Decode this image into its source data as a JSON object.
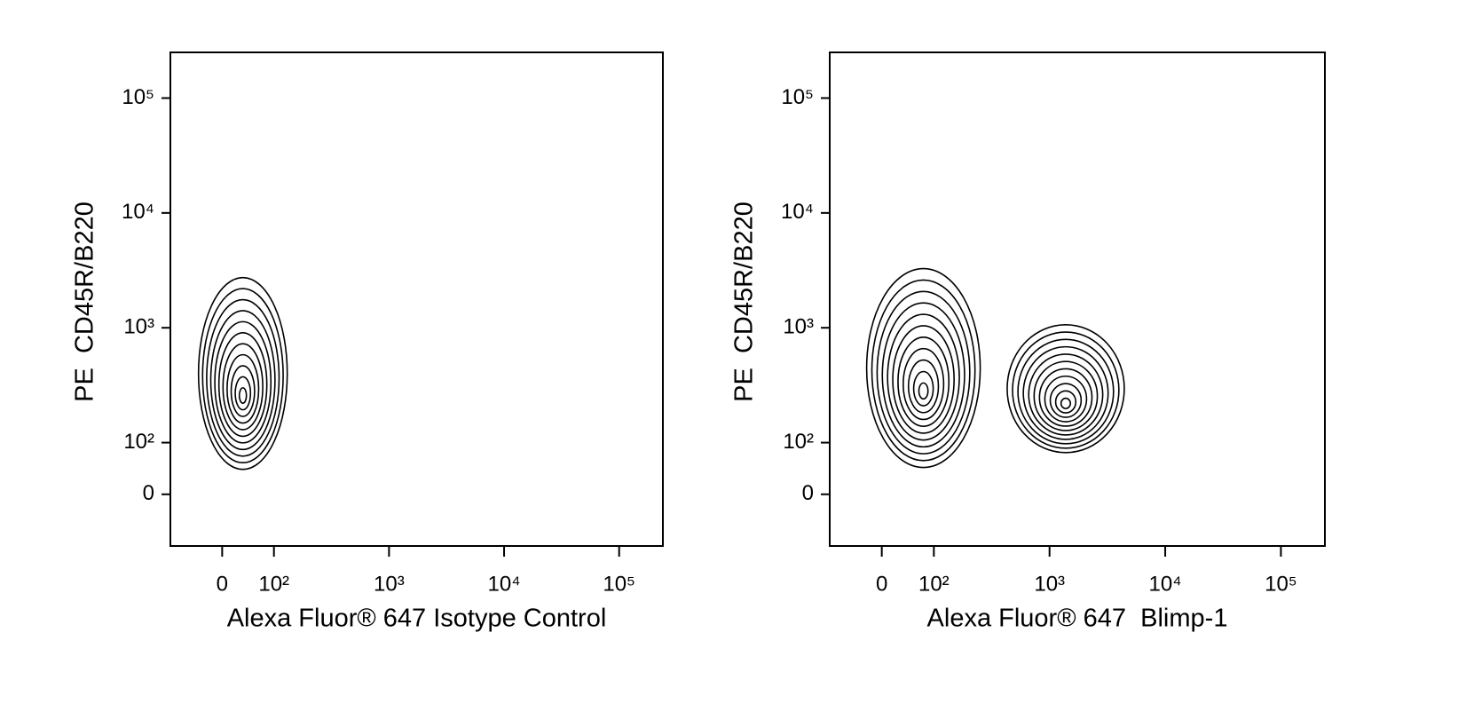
{
  "chart_data": [
    {
      "type": "contour",
      "scale": "biexponential",
      "x_label": "Alexa Fluor® 647 Isotype Control",
      "y_label": "PE  CD45R/B220",
      "x": [
        40
      ],
      "y": [
        400
      ],
      "xlim": [
        -100,
        240000
      ],
      "ylim": [
        -100,
        250000
      ],
      "xticks": [
        0,
        {
          "value": 100,
          "label": "10²"
        },
        {
          "value": 1000,
          "label": "10³"
        },
        {
          "value": 10000,
          "label": "10⁴"
        },
        {
          "value": 100000,
          "label": "10⁵"
        }
      ],
      "yticks": [
        0,
        {
          "value": 100,
          "label": "10²"
        },
        {
          "value": 1000,
          "label": "10³"
        },
        {
          "value": 10000,
          "label": "10⁴"
        },
        {
          "value": 100000,
          "label": "10⁵"
        }
      ],
      "color": "#000000"
    },
    {
      "type": "contour",
      "scale": "biexponential",
      "x_label": "Alexa Fluor® 647  Blimp-1",
      "y_label": "PE  CD45R/B220",
      "x": [
        80,
        1380
      ],
      "y": [
        446,
        295
      ],
      "xlim": [
        -100,
        240000
      ],
      "ylim": [
        -100,
        250000
      ],
      "xticks": [
        0,
        {
          "value": 100,
          "label": "10²"
        },
        {
          "value": 1000,
          "label": "10³"
        },
        {
          "value": 10000,
          "label": "10⁴"
        },
        {
          "value": 100000,
          "label": "10⁵"
        }
      ],
      "yticks": [
        0,
        {
          "value": 100,
          "label": "10²"
        },
        {
          "value": 1000,
          "label": "10³"
        },
        {
          "value": 10000,
          "label": "10⁴"
        },
        {
          "value": 100000,
          "label": "10⁵"
        }
      ],
      "color": "#000000"
    }
  ]
}
